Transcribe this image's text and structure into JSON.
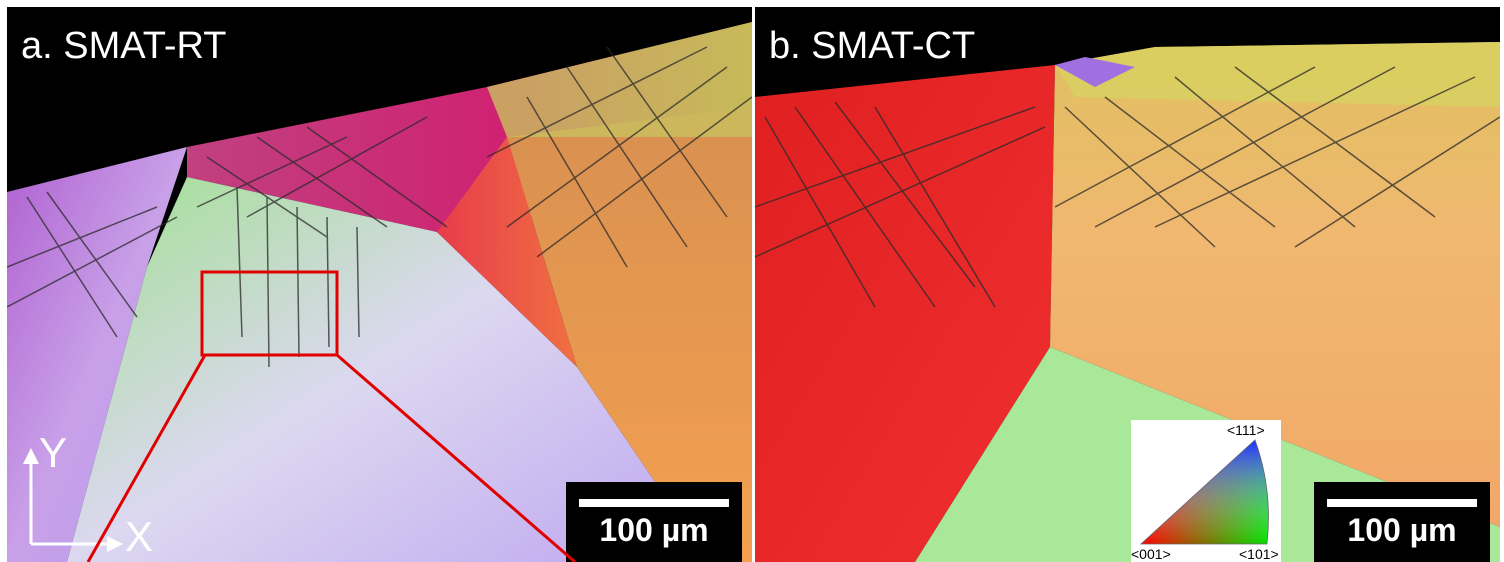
{
  "panels": {
    "a": {
      "title": "a. SMAT-RT",
      "scale_bar": "100 µm"
    },
    "b": {
      "title": "b. SMAT-CT",
      "scale_bar": "100 µm"
    }
  },
  "axes": {
    "x": "X",
    "y": "Y"
  },
  "ipf_legend": {
    "top": "<111>",
    "bottom_left": "<001>",
    "bottom_right": "<101>"
  },
  "colors": {
    "inset_box": "#e00000",
    "slip_lines": "#2a2a2a",
    "background": "#000000"
  }
}
